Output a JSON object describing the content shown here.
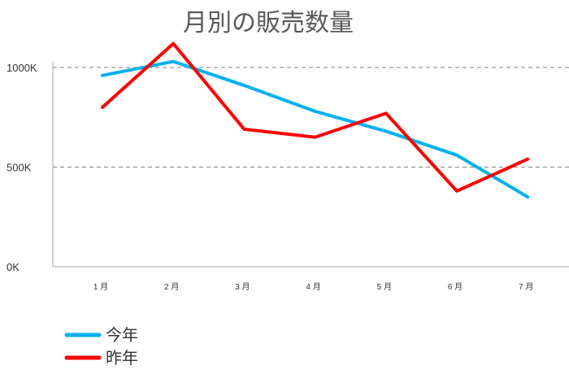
{
  "chart_data": {
    "type": "line",
    "title": "月別の販売数量",
    "categories": [
      "1 月",
      "2 月",
      "3 月",
      "4 月",
      "5 月",
      "6 月",
      "7 月"
    ],
    "ylim": [
      0,
      1000000
    ],
    "yticks": [
      {
        "value": 0,
        "label": "0K"
      },
      {
        "value": 500000,
        "label": "500K"
      },
      {
        "value": 1000000,
        "label": "1000K"
      }
    ],
    "grid": true,
    "legend_position": "bottom-left",
    "series": [
      {
        "name": "今年",
        "color": "#00b0f0",
        "values": [
          960000,
          1030000,
          910000,
          780000,
          680000,
          560000,
          350000
        ]
      },
      {
        "name": "昨年",
        "color": "#ff0000",
        "values": [
          800000,
          1120000,
          690000,
          650000,
          770000,
          380000,
          540000
        ]
      }
    ]
  }
}
